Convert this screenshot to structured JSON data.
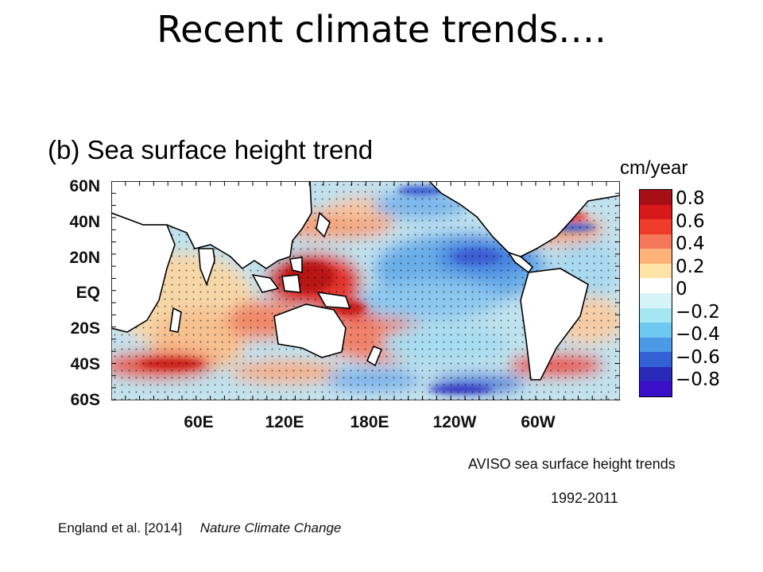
{
  "slide": {
    "title": "Recent climate trends….",
    "caption_line1": "AVISO sea surface height trends",
    "caption_line2": "1992-2011",
    "citation_authors": "England et al. [2014]",
    "citation_journal": "Nature Climate Change"
  },
  "map": {
    "panel_label": "(b) Sea surface height trend",
    "lat_labels": [
      "60N",
      "40N",
      "20N",
      "EQ",
      "20S",
      "40S",
      "60S"
    ],
    "lon_labels": [
      "60E",
      "120E",
      "180E",
      "120W",
      "60W"
    ]
  },
  "colorbar": {
    "unit": "cm/year",
    "ticks": [
      "0.8",
      "0.6",
      "0.4",
      "0.2",
      "0",
      "−0.2",
      "−0.4",
      "−0.6",
      "−0.8"
    ],
    "colors": [
      "#a50f15",
      "#d7191c",
      "#ef3b2c",
      "#f4765b",
      "#fdb27a",
      "#fee3a8",
      "#ffffff",
      "#d6f3f7",
      "#a6e6f2",
      "#6fc8ef",
      "#4a9ae8",
      "#3461d6",
      "#2a2ab8",
      "#3a10c8"
    ]
  }
}
